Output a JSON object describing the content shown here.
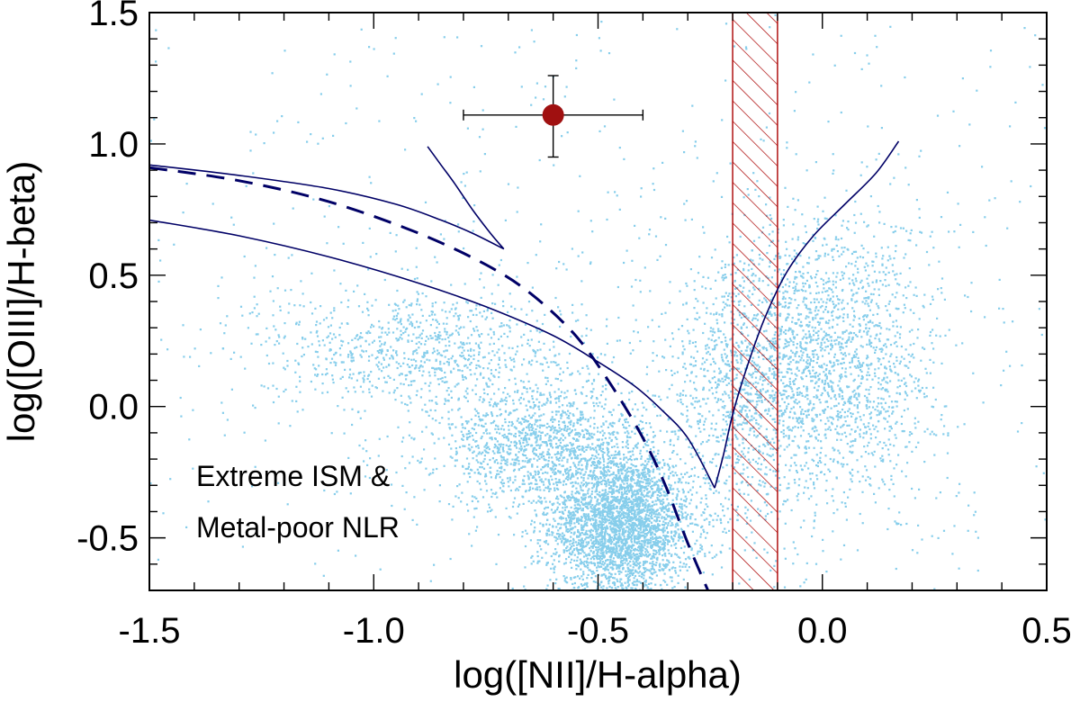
{
  "chart_data": {
    "type": "scatter",
    "title": "",
    "xlabel": "log([NII]/H-alpha)",
    "ylabel": "log([OIII]/H-beta)",
    "xlim": [
      -1.5,
      0.5
    ],
    "ylim": [
      -0.7,
      1.5
    ],
    "x_ticks": [
      "-1.5",
      "-1.0",
      "-0.5",
      "0.0",
      "0.5"
    ],
    "y_ticks": [
      "-0.5",
      "0.0",
      "0.5",
      "1.0",
      "1.5"
    ],
    "annotations": [
      "Extreme ISM &",
      "Metal-poor NLR"
    ],
    "colors": {
      "scatter": "#87CEEB",
      "lines": "#000066",
      "hatch": "#AA0000",
      "marker": "#A01010"
    },
    "hatched_band": {
      "x_min": -0.2,
      "x_max": -0.1
    },
    "measurement": {
      "x": -0.6,
      "y": 1.11,
      "x_err": 0.2,
      "y_err_up": 0.15,
      "y_err_down": 0.16
    },
    "series": [
      {
        "style": "solid",
        "points": [
          [
            -1.5,
            0.92
          ],
          [
            -1.3,
            0.88
          ],
          [
            -1.1,
            0.83
          ],
          [
            -0.95,
            0.77
          ],
          [
            -0.85,
            0.71
          ],
          [
            -0.78,
            0.66
          ],
          [
            -0.71,
            0.6
          ]
        ]
      },
      {
        "style": "solid",
        "points": [
          [
            -0.71,
            0.6
          ],
          [
            -0.74,
            0.66
          ],
          [
            -0.78,
            0.75
          ],
          [
            -0.82,
            0.85
          ],
          [
            -0.85,
            0.92
          ],
          [
            -0.88,
            0.99
          ]
        ]
      },
      {
        "style": "dashed",
        "points": [
          [
            -1.5,
            0.91
          ],
          [
            -1.3,
            0.86
          ],
          [
            -1.1,
            0.78
          ],
          [
            -0.9,
            0.66
          ],
          [
            -0.75,
            0.54
          ],
          [
            -0.65,
            0.43
          ],
          [
            -0.55,
            0.27
          ],
          [
            -0.47,
            0.08
          ],
          [
            -0.4,
            -0.12
          ],
          [
            -0.35,
            -0.3
          ],
          [
            -0.3,
            -0.52
          ],
          [
            -0.25,
            -0.72
          ]
        ]
      },
      {
        "style": "solid",
        "points": [
          [
            -1.5,
            0.71
          ],
          [
            -1.3,
            0.65
          ],
          [
            -1.1,
            0.57
          ],
          [
            -0.9,
            0.47
          ],
          [
            -0.75,
            0.38
          ],
          [
            -0.6,
            0.27
          ],
          [
            -0.5,
            0.17
          ],
          [
            -0.42,
            0.08
          ],
          [
            -0.36,
            -0.01
          ],
          [
            -0.3,
            -0.12
          ],
          [
            -0.24,
            -0.31
          ]
        ]
      },
      {
        "style": "solid",
        "points": [
          [
            -0.24,
            -0.31
          ],
          [
            -0.22,
            -0.18
          ],
          [
            -0.2,
            -0.03
          ],
          [
            -0.17,
            0.14
          ],
          [
            -0.13,
            0.33
          ],
          [
            -0.08,
            0.51
          ],
          [
            -0.02,
            0.65
          ],
          [
            0.05,
            0.77
          ],
          [
            0.12,
            0.89
          ],
          [
            0.17,
            1.01
          ]
        ]
      }
    ]
  }
}
